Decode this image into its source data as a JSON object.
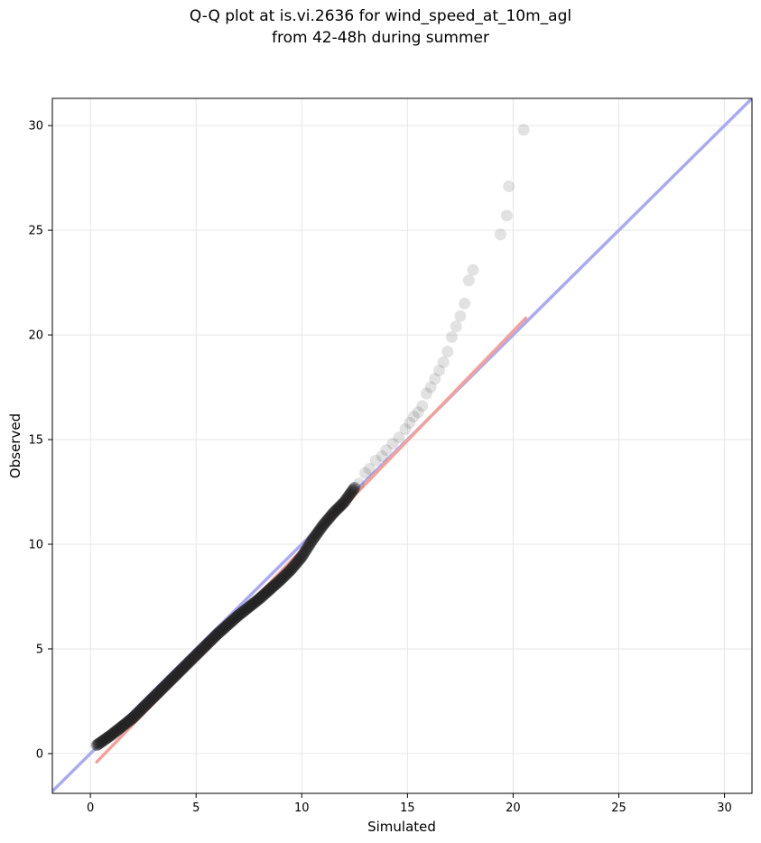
{
  "chart_data": {
    "type": "scatter",
    "title_line1": "Q-Q plot at is.vi.2636 for wind_speed_at_10m_agl",
    "title_line2": "from 42-48h during summer",
    "xlabel": "Simulated",
    "ylabel": "Observed",
    "xlim": [
      -1.8,
      31.3
    ],
    "ylim": [
      -1.9,
      31.3
    ],
    "xticks": [
      "0",
      "5",
      "10",
      "15",
      "20",
      "25",
      "30"
    ],
    "yticks": [
      "0",
      "5",
      "10",
      "15",
      "20",
      "25",
      "30"
    ],
    "grid": true,
    "colors": {
      "points": "#222222",
      "identity_line": "#aaaaf2",
      "fit_line": "#f4a19a",
      "grid": "#e6e6e6"
    },
    "identity_line": {
      "x": [
        -1.8,
        31.3
      ],
      "y": [
        -1.8,
        31.3
      ]
    },
    "fit_line": {
      "x": [
        0.3,
        20.6
      ],
      "y": [
        -0.4,
        20.8
      ]
    },
    "tail_points": {
      "x": [
        12.7,
        13.0,
        13.2,
        13.5,
        13.8,
        14.0,
        14.3,
        14.6,
        14.9,
        15.1,
        15.3,
        15.5,
        15.7,
        15.9,
        16.1,
        16.3,
        16.5,
        16.7,
        16.9,
        17.1,
        17.3,
        17.5,
        17.7,
        17.9,
        18.1,
        19.4,
        19.7,
        19.8,
        20.5
      ],
      "y": [
        12.9,
        13.4,
        13.6,
        14.0,
        14.2,
        14.5,
        14.8,
        15.1,
        15.5,
        15.8,
        16.1,
        16.3,
        16.6,
        17.2,
        17.5,
        17.9,
        18.3,
        18.7,
        19.2,
        19.9,
        20.4,
        20.9,
        21.5,
        22.6,
        23.1,
        24.8,
        25.7,
        27.1,
        29.8
      ]
    },
    "body_curve": {
      "x": [
        0.3,
        1.0,
        2.0,
        3.0,
        4.0,
        5.0,
        6.0,
        7.0,
        8.0,
        9.0,
        9.5,
        10.0,
        10.5,
        11.0,
        11.5,
        12.0,
        12.5
      ],
      "y": [
        0.4,
        0.9,
        1.7,
        2.7,
        3.7,
        4.7,
        5.7,
        6.6,
        7.4,
        8.3,
        8.8,
        9.4,
        10.2,
        10.9,
        11.5,
        12.0,
        12.7
      ]
    },
    "body_point_count": 300
  }
}
